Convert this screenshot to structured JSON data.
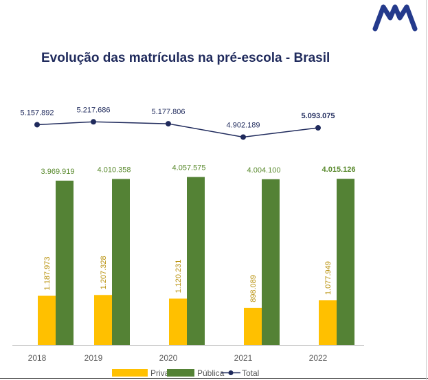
{
  "title": "Evolução das matrículas na pré-escola - Brasil",
  "logo": {
    "icon": "m-logo-icon",
    "color": "#243a8c"
  },
  "chart_data": {
    "type": "bar",
    "categories": [
      "2018",
      "2019",
      "2020",
      "2021",
      "2022"
    ],
    "series": [
      {
        "name": "Privada",
        "kind": "bar",
        "color": "#ffc000",
        "values": [
          1187973,
          1207328,
          1120231,
          898089,
          1077949
        ],
        "labels": [
          "1.187.973",
          "1.207.328",
          "1.120.231",
          "898.089",
          "1.077.949"
        ]
      },
      {
        "name": "Pública",
        "kind": "bar",
        "color": "#548235",
        "values": [
          3969919,
          4010358,
          4057575,
          4004100,
          4015126
        ],
        "labels": [
          "3.969.919",
          "4.010.358",
          "4.057.575",
          "4.004.100",
          "4.015.126"
        ]
      },
      {
        "name": "Total",
        "kind": "line",
        "color": "#1f2a5c",
        "values": [
          5157892,
          5217686,
          5177806,
          4902189,
          5093075
        ],
        "labels": [
          "5.157.892",
          "5.217.686",
          "5.177.806",
          "4.902.189",
          "5.093.075"
        ]
      }
    ],
    "ylim": [
      0,
      4300000
    ],
    "legend": "bottom",
    "grid": false
  }
}
